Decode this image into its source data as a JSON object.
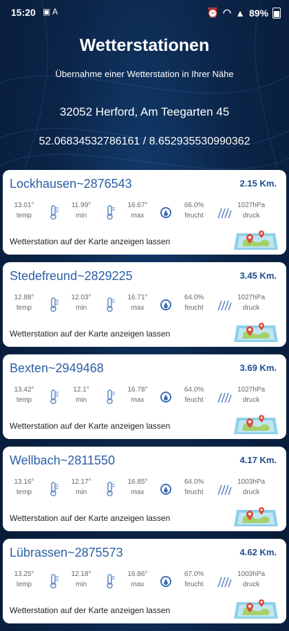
{
  "status": {
    "time": "15:20",
    "battery": "89%"
  },
  "header": {
    "title": "Wetterstationen",
    "subtitle": "Übernahme einer Wetterstation in Ihrer Nähe",
    "address": "32052 Herford, Am Teegarten 45",
    "coordinates": "52.06834532786161 / 8.652935530990362"
  },
  "labels": {
    "temp": "temp",
    "min": "min",
    "max": "max",
    "humidity": "feucht",
    "pressure": "druck",
    "map_link": "Wetterstation auf der Karte anzeigen lassen"
  },
  "stations": [
    {
      "name": "Lockhausen~2876543",
      "distance": "2.15 Km.",
      "temp": "13.01°",
      "min": "11.99°",
      "max": "16.67°",
      "humidity": "66.0%",
      "pressure": "1027hPa"
    },
    {
      "name": "Stedefreund~2829225",
      "distance": "3.45 Km.",
      "temp": "12.88°",
      "min": "12.03°",
      "max": "16.71°",
      "humidity": "64.0%",
      "pressure": "1027hPa"
    },
    {
      "name": "Bexten~2949468",
      "distance": "3.69 Km.",
      "temp": "13.42°",
      "min": "12.1°",
      "max": "16.78°",
      "humidity": "64.0%",
      "pressure": "1027hPa"
    },
    {
      "name": "Wellbach~2811550",
      "distance": "4.17 Km.",
      "temp": "13.16°",
      "min": "12.17°",
      "max": "16.85°",
      "humidity": "64.0%",
      "pressure": "1003hPa"
    },
    {
      "name": "Lübrassen~2875573",
      "distance": "4.62 Km.",
      "temp": "13.25°",
      "min": "12.18°",
      "max": "16.86°",
      "humidity": "67.0%",
      "pressure": "1003hPa"
    }
  ],
  "colors": {
    "accent": "#2b5fa6",
    "distance": "#1f4d8f",
    "background": "#0b2447"
  }
}
